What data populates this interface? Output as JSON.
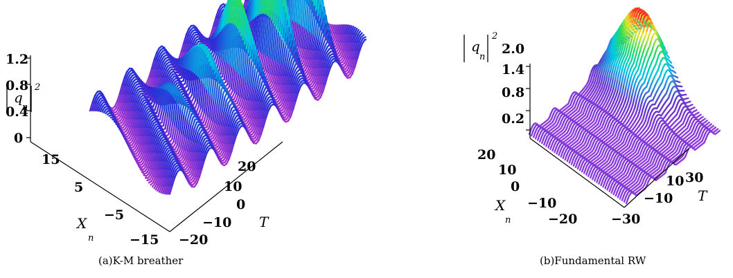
{
  "chart_data": [
    {
      "type": "surface",
      "caption": "(a)K-M breather",
      "z_label": {
        "var": "q",
        "sub": "n",
        "sup": "2"
      },
      "z_ticks": [
        "1.2",
        "0.8",
        "0.4",
        "0"
      ],
      "x_label": {
        "var": "X",
        "sub": "n"
      },
      "x_ticks": [
        "15",
        "5",
        "−5",
        "−15"
      ],
      "t_label": "T",
      "t_ticks": [
        "20",
        "10",
        "0",
        "−10",
        "−20"
      ],
      "colors": {
        "low": "#cc33cc",
        "mid": "#2a2ad6",
        "peak": "#ff2020"
      }
    },
    {
      "type": "surface",
      "caption": "(b)Fundamental RW",
      "z_label": {
        "var": "q",
        "sub": "n",
        "sup": "2"
      },
      "z_ticks": [
        "2.0",
        "1.4",
        "0.8",
        "0.2"
      ],
      "x_label": {
        "var": "X",
        "sub": "n"
      },
      "x_ticks": [
        "20",
        "10",
        "0",
        "−10",
        "−20"
      ],
      "t_label": "T",
      "t_ticks": [
        "30",
        "10",
        "−10",
        "−30"
      ],
      "colors": {
        "low": "#9a3fe0",
        "mid": "#6633cc",
        "peak": "#ff2020"
      }
    }
  ]
}
